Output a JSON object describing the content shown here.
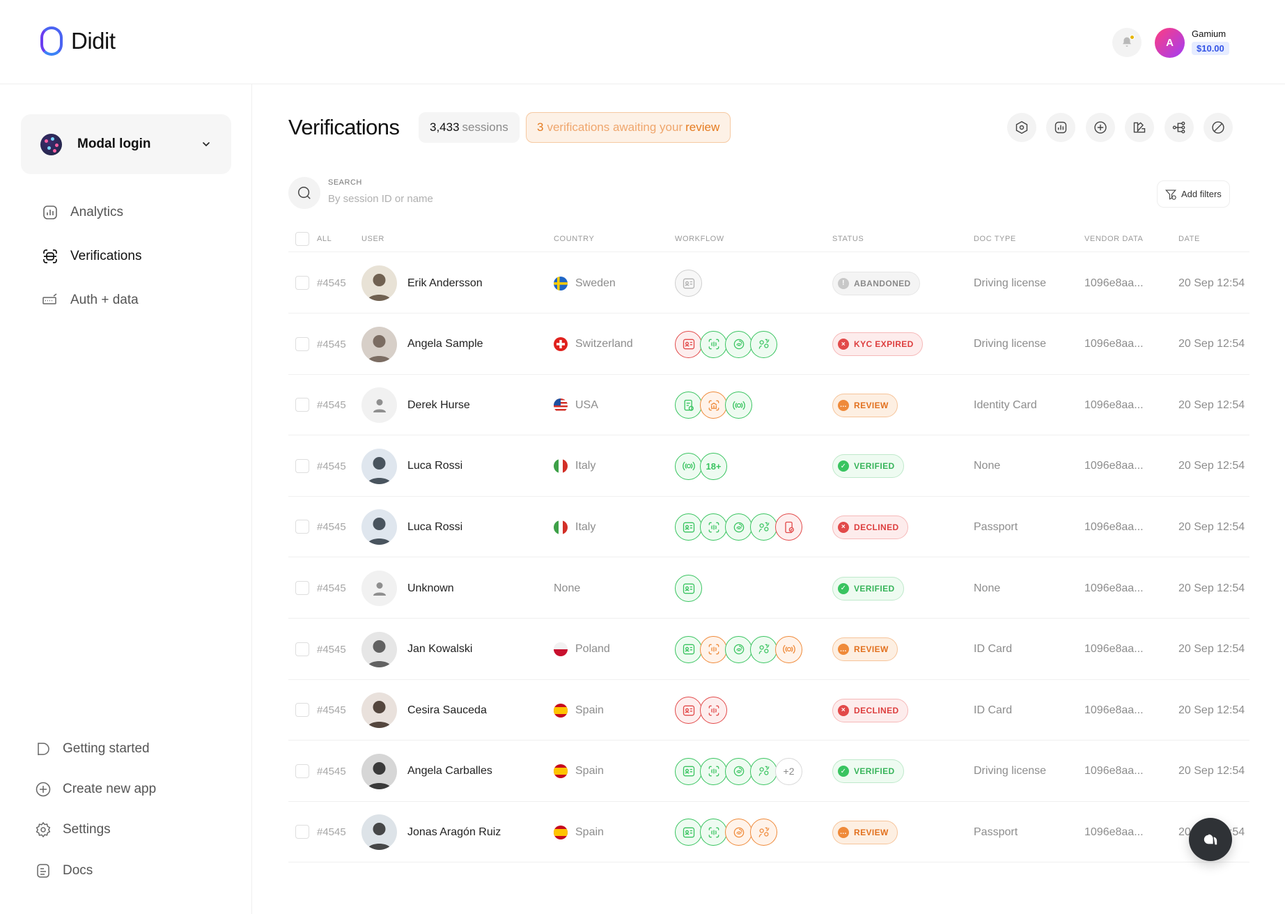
{
  "header": {
    "logo_text": "Didit",
    "account": {
      "avatar_letter": "A",
      "name": "Gamium",
      "balance": "$10.00"
    }
  },
  "sidebar": {
    "app_name": "Modal login",
    "nav": [
      {
        "label": "Analytics",
        "icon": "analytics-icon",
        "active": false
      },
      {
        "label": "Verifications",
        "icon": "verifications-icon",
        "active": true
      },
      {
        "label": "Auth + data",
        "icon": "auth-data-icon",
        "active": false
      }
    ],
    "bottom": [
      {
        "label": "Getting started",
        "icon": "flag-icon"
      },
      {
        "label": "Create new app",
        "icon": "plus-circle-icon"
      },
      {
        "label": "Settings",
        "icon": "gear-icon"
      },
      {
        "label": "Docs",
        "icon": "document-icon"
      }
    ]
  },
  "main": {
    "title": "Verifications",
    "sessions_count": "3,433",
    "sessions_label": "sessions",
    "review_count": "3",
    "review_text": "verifications awaiting your",
    "review_link": "review",
    "toolbar_icons": [
      "hexagon-settings-icon",
      "analytics-icon",
      "plus-circle-icon",
      "design-icon",
      "workflow-icon",
      "block-icon"
    ],
    "search": {
      "label": "SEARCH",
      "placeholder": "By session ID or name"
    },
    "add_filters": "Add filters"
  },
  "table": {
    "columns": {
      "all": "ALL",
      "user": "USER",
      "country": "COUNTRY",
      "workflow": "WORKFLOW",
      "status": "STATUS",
      "doc_type": "DOC TYPE",
      "vendor_data": "VENDOR DATA",
      "date": "DATE"
    },
    "rows": [
      {
        "id": "#4545",
        "name": "Erik Andersson",
        "country": "Sweden",
        "flag": "se",
        "status": "ABANDONED",
        "status_kind": "abandoned",
        "doc_type": "Driving license",
        "vendor": "1096e8aa...",
        "date": "20 Sep 12:54",
        "workflow": [
          {
            "c": "n",
            "i": "id"
          }
        ]
      },
      {
        "id": "#4545",
        "name": "Angela Sample",
        "country": "Switzerland",
        "flag": "ch",
        "status": "KYC EXPIRED",
        "status_kind": "expired",
        "doc_type": "Driving license",
        "vendor": "1096e8aa...",
        "date": "20 Sep 12:54",
        "workflow": [
          {
            "c": "r",
            "i": "id"
          },
          {
            "c": "g",
            "i": "face"
          },
          {
            "c": "g",
            "i": "finger"
          },
          {
            "c": "g",
            "i": "match"
          }
        ]
      },
      {
        "id": "#4545",
        "name": "Derek Hurse",
        "country": "USA",
        "flag": "us",
        "status": "REVIEW",
        "status_kind": "review",
        "doc_type": "Identity Card",
        "vendor": "1096e8aa...",
        "date": "20 Sep 12:54",
        "workflow": [
          {
            "c": "g",
            "i": "doc"
          },
          {
            "c": "o",
            "i": "bank"
          },
          {
            "c": "g",
            "i": "geo"
          }
        ]
      },
      {
        "id": "#4545",
        "name": "Luca Rossi",
        "country": "Italy",
        "flag": "it",
        "status": "VERIFIED",
        "status_kind": "verified",
        "doc_type": "None",
        "vendor": "1096e8aa...",
        "date": "20 Sep 12:54",
        "workflow": [
          {
            "c": "g",
            "i": "geo"
          },
          {
            "c": "g",
            "i": "text",
            "t": "18+"
          }
        ]
      },
      {
        "id": "#4545",
        "name": "Luca Rossi",
        "country": "Italy",
        "flag": "it",
        "status": "DECLINED",
        "status_kind": "declined",
        "doc_type": "Passport",
        "vendor": "1096e8aa...",
        "date": "20 Sep 12:54",
        "workflow": [
          {
            "c": "g",
            "i": "id"
          },
          {
            "c": "g",
            "i": "face"
          },
          {
            "c": "g",
            "i": "finger"
          },
          {
            "c": "g",
            "i": "match"
          },
          {
            "c": "r",
            "i": "phone"
          }
        ]
      },
      {
        "id": "#4545",
        "name": "Unknown",
        "country": "None",
        "flag": "",
        "status": "VERIFIED",
        "status_kind": "verified",
        "doc_type": "None",
        "vendor": "1096e8aa...",
        "date": "20 Sep 12:54",
        "workflow": [
          {
            "c": "g",
            "i": "id"
          }
        ]
      },
      {
        "id": "#4545",
        "name": "Jan Kowalski",
        "country": "Poland",
        "flag": "pl",
        "status": "REVIEW",
        "status_kind": "review",
        "doc_type": "ID Card",
        "vendor": "1096e8aa...",
        "date": "20 Sep 12:54",
        "workflow": [
          {
            "c": "g",
            "i": "id"
          },
          {
            "c": "o",
            "i": "face"
          },
          {
            "c": "g",
            "i": "finger"
          },
          {
            "c": "g",
            "i": "match"
          },
          {
            "c": "o",
            "i": "geo"
          }
        ]
      },
      {
        "id": "#4545",
        "name": "Cesira Sauceda",
        "country": "Spain",
        "flag": "es",
        "status": "DECLINED",
        "status_kind": "declined",
        "doc_type": "ID Card",
        "vendor": "1096e8aa...",
        "date": "20 Sep 12:54",
        "workflow": [
          {
            "c": "r",
            "i": "id"
          },
          {
            "c": "r",
            "i": "face"
          }
        ]
      },
      {
        "id": "#4545",
        "name": "Angela Carballes",
        "country": "Spain",
        "flag": "es",
        "status": "VERIFIED",
        "status_kind": "verified",
        "doc_type": "Driving license",
        "vendor": "1096e8aa...",
        "date": "20 Sep 12:54",
        "workflow": [
          {
            "c": "g",
            "i": "id"
          },
          {
            "c": "g",
            "i": "face"
          },
          {
            "c": "g",
            "i": "finger"
          },
          {
            "c": "g",
            "i": "match"
          },
          {
            "c": "more",
            "i": "text",
            "t": "+2"
          }
        ]
      },
      {
        "id": "#4545",
        "name": "Jonas Aragón Ruiz",
        "country": "Spain",
        "flag": "es",
        "status": "REVIEW",
        "status_kind": "review",
        "doc_type": "Passport",
        "vendor": "1096e8aa...",
        "date": "20 Sep 12:54",
        "workflow": [
          {
            "c": "g",
            "i": "id"
          },
          {
            "c": "g",
            "i": "face"
          },
          {
            "c": "o",
            "i": "finger"
          },
          {
            "c": "o",
            "i": "match"
          }
        ]
      }
    ]
  },
  "colors": {
    "brand": "#4a63f2",
    "verified": "#39c460",
    "declined": "#e24a4a",
    "review": "#ef8a3a",
    "neutral": "#b3b3b3"
  }
}
